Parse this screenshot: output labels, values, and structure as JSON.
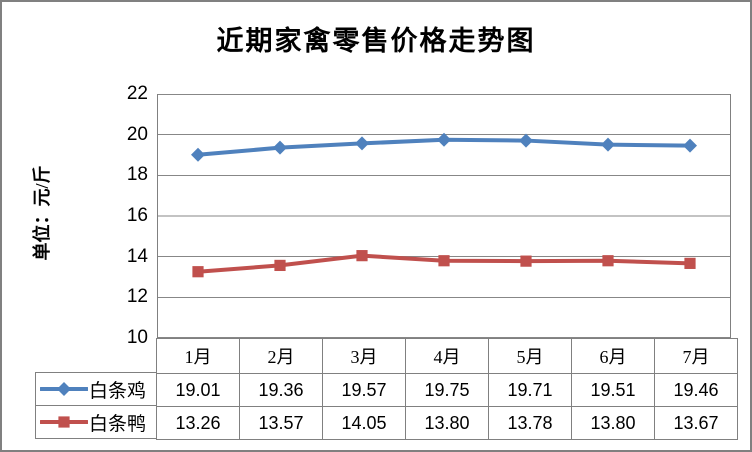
{
  "window": {
    "background": "#FFFFFF",
    "frame_color": "#808080"
  },
  "chart_data": {
    "type": "line",
    "title": "近期家禽零售价格走势图",
    "ylabel": "单位：元/斤",
    "xlabel": "",
    "categories": [
      "1月",
      "2月",
      "3月",
      "4月",
      "5月",
      "6月",
      "7月"
    ],
    "series": [
      {
        "name": "白条鸡",
        "values": [
          19.01,
          19.36,
          19.57,
          19.75,
          19.71,
          19.51,
          19.46
        ],
        "color": "#4F81BD",
        "marker": "diamond"
      },
      {
        "name": "白条鸭",
        "values": [
          13.26,
          13.57,
          14.05,
          13.8,
          13.78,
          13.8,
          13.67
        ],
        "color": "#C0504D",
        "marker": "square"
      }
    ],
    "ylim": [
      10,
      22
    ],
    "ytick_step": 2,
    "grid": true,
    "gridline_color": "#878787",
    "border_color": "#808080",
    "legend_position": "table-left",
    "value_decimals": 2
  }
}
